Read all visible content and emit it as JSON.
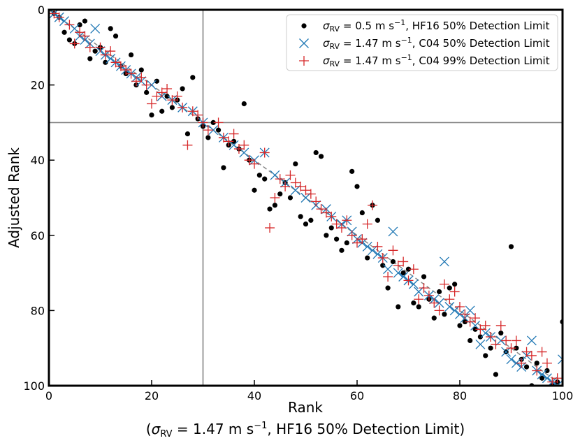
{
  "chart_data": {
    "type": "scatter",
    "xlabel": "Rank",
    "xlabel_sub": "(σ_RV = 1.47 m s^-1, HF16 50% Detection Limit)",
    "xlabel_sub_parts": [
      "(",
      "σ",
      "RV",
      " = 1.47 m s",
      "−1",
      ", HF16 50% Detection Limit)"
    ],
    "ylabel": "Adjusted Rank",
    "xlim": [
      0,
      100
    ],
    "ylim": [
      100,
      0
    ],
    "xticks": [
      0,
      20,
      40,
      60,
      80,
      100
    ],
    "yticks": [
      0,
      20,
      40,
      60,
      80,
      100
    ],
    "reference_lines": {
      "vertical_x": 30,
      "horizontal_y": 30,
      "diagonal": "y = x (dashed)"
    },
    "legend_position": "top-right",
    "series": [
      {
        "name": "σRV = 0.5 m s−1, HF16 50% Detection Limit",
        "label_parts": [
          "σ",
          "RV",
          " = 0.5 m s",
          "−1",
          ", HF16 50% Detection Limit"
        ],
        "marker": "dot",
        "color": "#000000",
        "points": [
          [
            1,
            1
          ],
          [
            2,
            2
          ],
          [
            3,
            6
          ],
          [
            4,
            8
          ],
          [
            5,
            9
          ],
          [
            6,
            4
          ],
          [
            7,
            3
          ],
          [
            8,
            13
          ],
          [
            9,
            11
          ],
          [
            10,
            10
          ],
          [
            11,
            14
          ],
          [
            12,
            5
          ],
          [
            13,
            7
          ],
          [
            14,
            15
          ],
          [
            15,
            17
          ],
          [
            16,
            12
          ],
          [
            17,
            20
          ],
          [
            18,
            16
          ],
          [
            19,
            22
          ],
          [
            20,
            28
          ],
          [
            21,
            19
          ],
          [
            22,
            27
          ],
          [
            23,
            23
          ],
          [
            24,
            26
          ],
          [
            25,
            24
          ],
          [
            26,
            21
          ],
          [
            27,
            33
          ],
          [
            28,
            18
          ],
          [
            29,
            29
          ],
          [
            30,
            31
          ],
          [
            31,
            34
          ],
          [
            32,
            30
          ],
          [
            33,
            32
          ],
          [
            34,
            42
          ],
          [
            35,
            36
          ],
          [
            36,
            35
          ],
          [
            37,
            37
          ],
          [
            38,
            25
          ],
          [
            39,
            40
          ],
          [
            40,
            48
          ],
          [
            41,
            44
          ],
          [
            42,
            45
          ],
          [
            43,
            53
          ],
          [
            44,
            52
          ],
          [
            45,
            49
          ],
          [
            46,
            46
          ],
          [
            47,
            50
          ],
          [
            48,
            41
          ],
          [
            49,
            55
          ],
          [
            50,
            57
          ],
          [
            51,
            56
          ],
          [
            52,
            38
          ],
          [
            53,
            39
          ],
          [
            54,
            60
          ],
          [
            55,
            58
          ],
          [
            56,
            61
          ],
          [
            57,
            64
          ],
          [
            58,
            62
          ],
          [
            59,
            43
          ],
          [
            60,
            47
          ],
          [
            61,
            54
          ],
          [
            62,
            66
          ],
          [
            63,
            52
          ],
          [
            64,
            56
          ],
          [
            65,
            68
          ],
          [
            66,
            74
          ],
          [
            67,
            67
          ],
          [
            68,
            79
          ],
          [
            69,
            70
          ],
          [
            70,
            69
          ],
          [
            71,
            78
          ],
          [
            72,
            79
          ],
          [
            73,
            71
          ],
          [
            74,
            77
          ],
          [
            75,
            82
          ],
          [
            76,
            75
          ],
          [
            77,
            81
          ],
          [
            78,
            74
          ],
          [
            79,
            73
          ],
          [
            80,
            84
          ],
          [
            81,
            83
          ],
          [
            82,
            88
          ],
          [
            83,
            85
          ],
          [
            84,
            87
          ],
          [
            85,
            92
          ],
          [
            86,
            90
          ],
          [
            87,
            97
          ],
          [
            88,
            86
          ],
          [
            89,
            91
          ],
          [
            90,
            63
          ],
          [
            91,
            90
          ],
          [
            92,
            93
          ],
          [
            93,
            95
          ],
          [
            94,
            100
          ],
          [
            95,
            94
          ],
          [
            96,
            98
          ],
          [
            97,
            96
          ],
          [
            98,
            100
          ],
          [
            99,
            99
          ],
          [
            100,
            83
          ]
        ]
      },
      {
        "name": "σRV = 1.47 m s−1, C04 50% Detection Limit",
        "label_parts": [
          "σ",
          "RV",
          " = 1.47 m s",
          "−1",
          ", C04 50% Detection Limit"
        ],
        "marker": "x",
        "color": "#1f77b4",
        "points": [
          [
            1,
            1
          ],
          [
            2,
            2
          ],
          [
            3,
            3
          ],
          [
            5,
            5
          ],
          [
            6,
            7
          ],
          [
            7,
            8
          ],
          [
            8,
            9
          ],
          [
            9,
            5
          ],
          [
            10,
            11
          ],
          [
            11,
            12
          ],
          [
            12,
            13
          ],
          [
            13,
            14
          ],
          [
            14,
            15
          ],
          [
            15,
            16
          ],
          [
            16,
            17
          ],
          [
            17,
            18
          ],
          [
            18,
            19
          ],
          [
            20,
            20
          ],
          [
            22,
            23
          ],
          [
            24,
            24
          ],
          [
            26,
            26
          ],
          [
            28,
            27
          ],
          [
            30,
            30
          ],
          [
            32,
            32
          ],
          [
            34,
            34
          ],
          [
            36,
            36
          ],
          [
            38,
            38
          ],
          [
            40,
            40
          ],
          [
            42,
            38
          ],
          [
            44,
            44
          ],
          [
            46,
            46
          ],
          [
            48,
            48
          ],
          [
            50,
            50
          ],
          [
            52,
            52
          ],
          [
            54,
            53
          ],
          [
            55,
            55
          ],
          [
            57,
            57
          ],
          [
            58,
            56
          ],
          [
            59,
            59
          ],
          [
            60,
            61
          ],
          [
            61,
            62
          ],
          [
            62,
            63
          ],
          [
            63,
            64
          ],
          [
            64,
            65
          ],
          [
            65,
            66
          ],
          [
            66,
            69
          ],
          [
            67,
            59
          ],
          [
            68,
            70
          ],
          [
            69,
            71
          ],
          [
            70,
            72
          ],
          [
            71,
            73
          ],
          [
            72,
            75
          ],
          [
            74,
            76
          ],
          [
            75,
            77
          ],
          [
            76,
            78
          ],
          [
            77,
            67
          ],
          [
            78,
            79
          ],
          [
            79,
            80
          ],
          [
            80,
            81
          ],
          [
            81,
            82
          ],
          [
            82,
            80
          ],
          [
            83,
            84
          ],
          [
            84,
            89
          ],
          [
            85,
            86
          ],
          [
            86,
            87
          ],
          [
            88,
            88
          ],
          [
            89,
            91
          ],
          [
            90,
            93
          ],
          [
            91,
            94
          ],
          [
            92,
            95
          ],
          [
            93,
            92
          ],
          [
            94,
            88
          ],
          [
            95,
            96
          ],
          [
            96,
            97
          ],
          [
            97,
            98
          ],
          [
            98,
            99
          ],
          [
            99,
            100
          ],
          [
            100,
            93
          ]
        ]
      },
      {
        "name": "σRV = 1.47 m s−1, C04 99% Detection Limit",
        "label_parts": [
          "σ",
          "RV",
          " = 1.47 m s",
          "−1",
          ", C04 99% Detection Limit"
        ],
        "marker": "plus",
        "color": "#d62728",
        "points": [
          [
            1,
            1
          ],
          [
            2,
            2
          ],
          [
            4,
            4
          ],
          [
            5,
            9
          ],
          [
            6,
            6
          ],
          [
            7,
            7
          ],
          [
            8,
            10
          ],
          [
            10,
            10
          ],
          [
            11,
            12
          ],
          [
            12,
            11
          ],
          [
            13,
            14
          ],
          [
            14,
            15
          ],
          [
            15,
            16
          ],
          [
            16,
            17
          ],
          [
            17,
            19
          ],
          [
            18,
            18
          ],
          [
            19,
            20
          ],
          [
            20,
            25
          ],
          [
            21,
            23
          ],
          [
            22,
            22
          ],
          [
            23,
            21
          ],
          [
            24,
            24
          ],
          [
            25,
            23
          ],
          [
            26,
            26
          ],
          [
            27,
            36
          ],
          [
            28,
            27
          ],
          [
            29,
            28
          ],
          [
            30,
            30
          ],
          [
            31,
            32
          ],
          [
            33,
            30
          ],
          [
            34,
            34
          ],
          [
            35,
            35
          ],
          [
            36,
            33
          ],
          [
            37,
            37
          ],
          [
            38,
            36
          ],
          [
            39,
            40
          ],
          [
            40,
            41
          ],
          [
            42,
            38
          ],
          [
            43,
            58
          ],
          [
            44,
            50
          ],
          [
            45,
            45
          ],
          [
            46,
            47
          ],
          [
            47,
            44
          ],
          [
            48,
            46
          ],
          [
            49,
            47
          ],
          [
            50,
            48
          ],
          [
            51,
            49
          ],
          [
            52,
            51
          ],
          [
            53,
            53
          ],
          [
            54,
            54
          ],
          [
            55,
            55
          ],
          [
            56,
            57
          ],
          [
            57,
            58
          ],
          [
            58,
            56
          ],
          [
            59,
            60
          ],
          [
            60,
            62
          ],
          [
            61,
            61
          ],
          [
            62,
            57
          ],
          [
            63,
            52
          ],
          [
            64,
            63
          ],
          [
            65,
            66
          ],
          [
            66,
            71
          ],
          [
            67,
            64
          ],
          [
            68,
            68
          ],
          [
            69,
            67
          ],
          [
            70,
            72
          ],
          [
            71,
            69
          ],
          [
            72,
            77
          ],
          [
            73,
            74
          ],
          [
            74,
            76
          ],
          [
            75,
            78
          ],
          [
            76,
            80
          ],
          [
            77,
            73
          ],
          [
            78,
            77
          ],
          [
            79,
            75
          ],
          [
            80,
            79
          ],
          [
            81,
            81
          ],
          [
            82,
            83
          ],
          [
            83,
            82
          ],
          [
            84,
            85
          ],
          [
            85,
            84
          ],
          [
            86,
            87
          ],
          [
            87,
            89
          ],
          [
            88,
            84
          ],
          [
            89,
            88
          ],
          [
            90,
            90
          ],
          [
            91,
            88
          ],
          [
            92,
            94
          ],
          [
            93,
            91
          ],
          [
            94,
            92
          ],
          [
            95,
            96
          ],
          [
            96,
            91
          ],
          [
            97,
            94
          ],
          [
            98,
            99
          ],
          [
            99,
            98
          ],
          [
            100,
            100
          ]
        ]
      }
    ]
  }
}
